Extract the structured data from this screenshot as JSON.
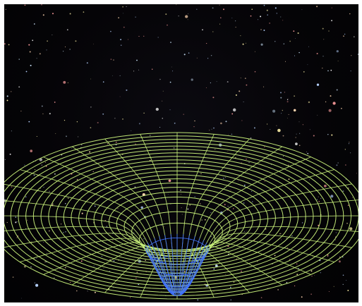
{
  "image": {
    "subject": "spacetime-curvature-grid",
    "background_color": "#050407",
    "grid_color": "#c8f07a",
    "well_color": "#3a6cff",
    "star_colors": [
      "#ffffff",
      "#ffd6b0",
      "#b7d3ff",
      "#ff9e9e",
      "#fff3a8",
      "#cfe8ff"
    ]
  }
}
